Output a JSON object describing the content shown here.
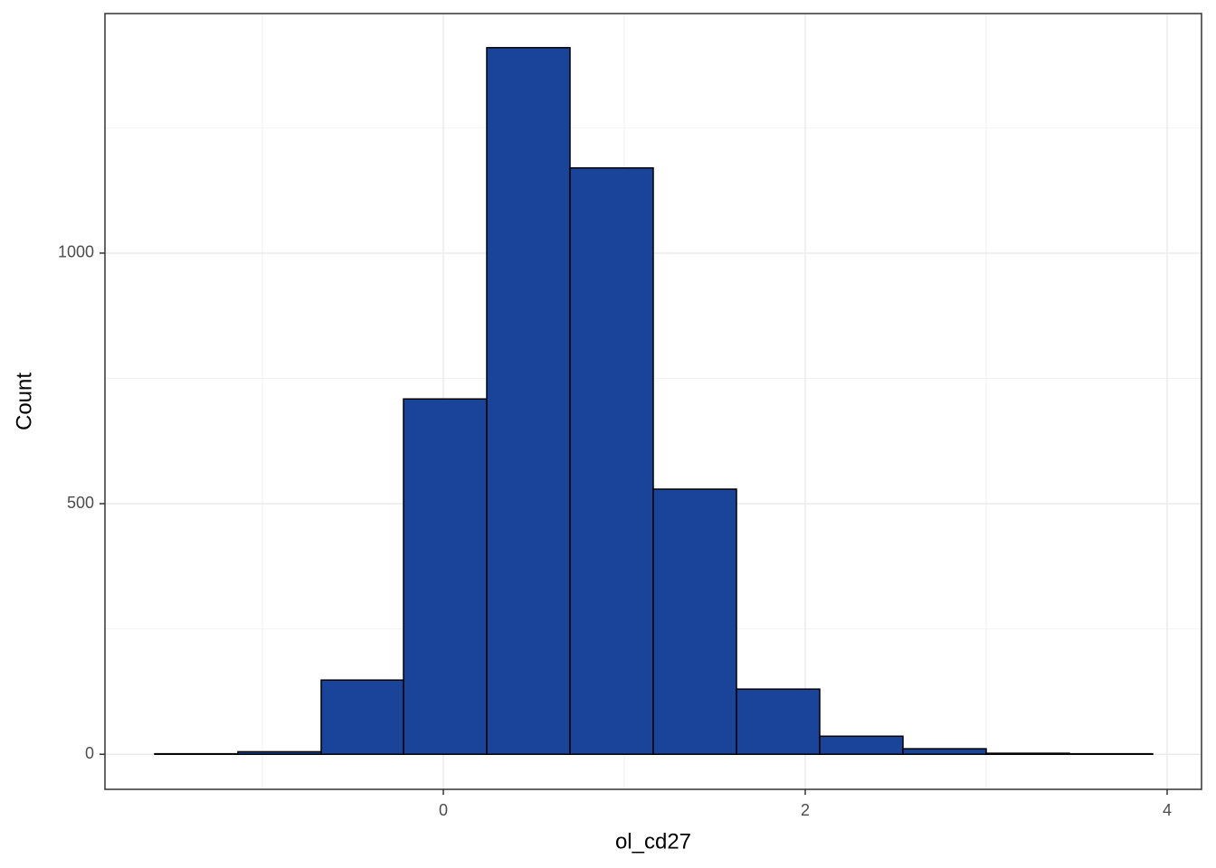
{
  "chart_data": {
    "type": "histogram",
    "x_label": "ol_cd27",
    "y_label": "Count",
    "bins": [
      -1.595,
      -1.135,
      -0.675,
      -0.22,
      0.24,
      0.7,
      1.16,
      1.62,
      2.08,
      2.54,
      3.0,
      3.46,
      3.92
    ],
    "values": [
      1,
      5,
      148,
      709,
      1410,
      1170,
      529,
      130,
      36,
      11,
      2,
      1
    ],
    "color": "#1a4499",
    "edge_color": "#000000",
    "xlim": [
      -1.87,
      4.19
    ],
    "ylim": [
      -70,
      1478
    ],
    "xticks": [
      0,
      2,
      4
    ],
    "yticks": [
      0,
      500,
      1000
    ],
    "x_minor_grid": [
      -1,
      1,
      3
    ],
    "y_minor_grid": [
      250,
      750,
      1250
    ],
    "grid": true
  }
}
